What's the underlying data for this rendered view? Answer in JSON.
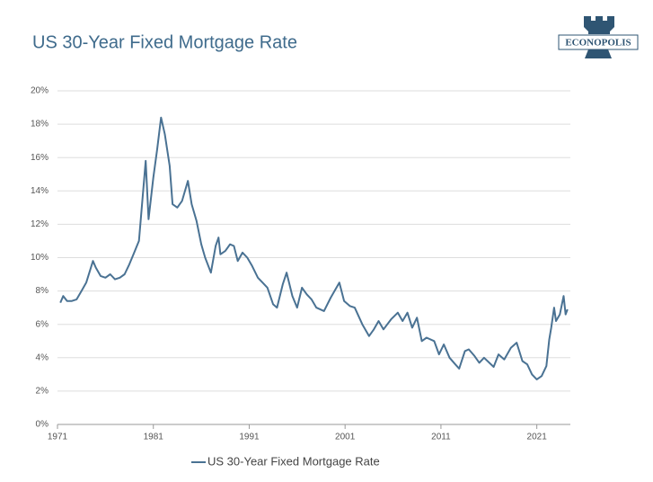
{
  "logo": "ECONOPOLIS",
  "chart_data": {
    "type": "line",
    "title": "US 30-Year Fixed Mortgage Rate",
    "x": [
      1971.3,
      1971.6,
      1972,
      1972.5,
      1973,
      1973.5,
      1974,
      1974.7,
      1975,
      1975.5,
      1976,
      1976.5,
      1977,
      1977.5,
      1978,
      1978.5,
      1979,
      1979.5,
      1980.2,
      1980.5,
      1981,
      1981.4,
      1981.8,
      1982.2,
      1982.7,
      1983,
      1983.5,
      1984,
      1984.6,
      1985,
      1985.5,
      1986,
      1986.4,
      1987,
      1987.5,
      1987.8,
      1988,
      1988.5,
      1989,
      1989.4,
      1989.8,
      1990.3,
      1990.8,
      1991.3,
      1991.9,
      1992.4,
      1992.9,
      1993.5,
      1993.9,
      1994.5,
      1994.9,
      1995.5,
      1996,
      1996.5,
      1997,
      1997.5,
      1998,
      1998.8,
      1999.5,
      2000.4,
      2000.9,
      2001.5,
      2002,
      2002.8,
      2003.5,
      2004,
      2004.5,
      2005,
      2005.8,
      2006.5,
      2007,
      2007.5,
      2008,
      2008.5,
      2009,
      2009.5,
      2010.3,
      2010.8,
      2011.3,
      2011.9,
      2012.5,
      2012.9,
      2013.5,
      2013.9,
      2014.5,
      2015,
      2015.5,
      2016.5,
      2017,
      2017.6,
      2018.3,
      2018.9,
      2019.5,
      2020,
      2020.5,
      2021,
      2021.5,
      2022,
      2022.3,
      2022.5,
      2022.8,
      2023,
      2023.4,
      2023.8,
      2024,
      2024.2
    ],
    "series": [
      {
        "name": "US 30-Year Fixed Mortgage Rate",
        "color": "#4a7293",
        "values": [
          7.3,
          7.7,
          7.4,
          7.4,
          7.5,
          8.0,
          8.5,
          9.8,
          9.4,
          8.9,
          8.8,
          9.0,
          8.7,
          8.8,
          9.0,
          9.6,
          10.3,
          11.0,
          15.8,
          12.3,
          14.8,
          16.5,
          18.4,
          17.4,
          15.5,
          13.2,
          13.0,
          13.4,
          14.6,
          13.2,
          12.2,
          10.8,
          10.0,
          9.1,
          10.7,
          11.2,
          10.2,
          10.4,
          10.8,
          10.7,
          9.8,
          10.3,
          10.0,
          9.5,
          8.8,
          8.5,
          8.2,
          7.2,
          7.0,
          8.4,
          9.1,
          7.7,
          7.0,
          8.2,
          7.8,
          7.5,
          7.0,
          6.8,
          7.6,
          8.5,
          7.4,
          7.1,
          7.0,
          6.0,
          5.3,
          5.7,
          6.2,
          5.7,
          6.3,
          6.7,
          6.2,
          6.7,
          5.8,
          6.4,
          5.0,
          5.2,
          5.0,
          4.2,
          4.8,
          4.0,
          3.6,
          3.35,
          4.4,
          4.5,
          4.1,
          3.7,
          4.0,
          3.45,
          4.2,
          3.9,
          4.6,
          4.9,
          3.8,
          3.6,
          3.0,
          2.7,
          2.9,
          3.5,
          5.1,
          5.8,
          7.0,
          6.2,
          6.6,
          7.7,
          6.6,
          6.9
        ]
      }
    ],
    "xlim": [
      1971,
      2024.5
    ],
    "xticks": [
      1971,
      1981,
      1991,
      2001,
      2011,
      2021
    ],
    "ylim": [
      0,
      20
    ],
    "yticks": [
      {
        "value": 0,
        "label": "0%"
      },
      {
        "value": 2,
        "label": "2%"
      },
      {
        "value": 4,
        "label": "4%"
      },
      {
        "value": 6,
        "label": "6%"
      },
      {
        "value": 8,
        "label": "8%"
      },
      {
        "value": 10,
        "label": "10%"
      },
      {
        "value": 12,
        "label": "12%"
      },
      {
        "value": 14,
        "label": "14%"
      },
      {
        "value": 16,
        "label": "16%"
      },
      {
        "value": 18,
        "label": "18%"
      },
      {
        "value": 20,
        "label": "20%"
      }
    ],
    "grid": true,
    "legend": "bottom"
  }
}
